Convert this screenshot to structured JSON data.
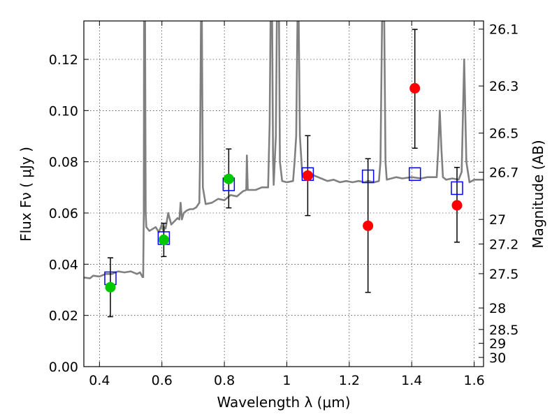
{
  "chart_data": {
    "type": "scatter",
    "xlabel": "Wavelength  λ (μm)",
    "ylabel_left": "Flux  Fν  ( μJy )",
    "ylabel_right": "Magnitude (AB)",
    "xlim": [
      0.35,
      1.63
    ],
    "ylim": [
      0.0,
      0.135
    ],
    "grid": true,
    "x_ticks": [
      0.4,
      0.6,
      0.8,
      1.0,
      1.2,
      1.4,
      1.6
    ],
    "x_tick_labels": [
      "0.4",
      "0.6",
      "0.8",
      "1",
      "1.2",
      "1.4",
      "1.6"
    ],
    "y_ticks": [
      0.0,
      0.02,
      0.04,
      0.06,
      0.08,
      0.1,
      0.12
    ],
    "y_tick_labels": [
      "0.00",
      "0.02",
      "0.04",
      "0.06",
      "0.08",
      "0.10",
      "0.12"
    ],
    "right_ticks": [
      {
        "label": "26.1",
        "flux": 0.1318
      },
      {
        "label": "26.3",
        "flux": 0.1096
      },
      {
        "label": "26.5",
        "flux": 0.0912
      },
      {
        "label": "26.7",
        "flux": 0.0759
      },
      {
        "label": "27",
        "flux": 0.0575
      },
      {
        "label": "27.2",
        "flux": 0.0479
      },
      {
        "label": "27.5",
        "flux": 0.0363
      },
      {
        "label": "28",
        "flux": 0.0229
      },
      {
        "label": "28.5",
        "flux": 0.0145
      },
      {
        "label": "29",
        "flux": 0.0091
      },
      {
        "label": "30",
        "flux": 0.0036
      }
    ],
    "series": [
      {
        "marker": "circle",
        "color": "#00c800",
        "points": [
          {
            "x": 0.435,
            "y": 0.031,
            "err_lo": 0.0195,
            "err_hi": 0.0425
          },
          {
            "x": 0.606,
            "y": 0.0495,
            "err_lo": 0.043,
            "err_hi": 0.056
          },
          {
            "x": 0.814,
            "y": 0.0733,
            "err_lo": 0.062,
            "err_hi": 0.085
          }
        ]
      },
      {
        "marker": "circle",
        "color": "#ff0000",
        "points": [
          {
            "x": 1.067,
            "y": 0.0746,
            "err_lo": 0.059,
            "err_hi": 0.0902
          },
          {
            "x": 1.26,
            "y": 0.055,
            "err_lo": 0.029,
            "err_hi": 0.0812
          },
          {
            "x": 1.41,
            "y": 0.1087,
            "err_lo": 0.0853,
            "err_hi": 0.1317
          },
          {
            "x": 1.545,
            "y": 0.063,
            "err_lo": 0.0486,
            "err_hi": 0.0778
          }
        ]
      },
      {
        "marker": "open-square",
        "color": "#0000ff",
        "points": [
          {
            "x": 0.435,
            "y": 0.0345
          },
          {
            "x": 0.606,
            "y": 0.0502
          },
          {
            "x": 0.814,
            "y": 0.0712
          },
          {
            "x": 1.067,
            "y": 0.0752
          },
          {
            "x": 1.26,
            "y": 0.0743
          },
          {
            "x": 1.41,
            "y": 0.0752
          },
          {
            "x": 1.545,
            "y": 0.0697
          }
        ]
      },
      {
        "type": "line",
        "color": "#808080",
        "points": [
          [
            0.35,
            0.0348
          ],
          [
            0.37,
            0.0345
          ],
          [
            0.38,
            0.0355
          ],
          [
            0.4,
            0.0352
          ],
          [
            0.42,
            0.0362
          ],
          [
            0.44,
            0.0362
          ],
          [
            0.46,
            0.0372
          ],
          [
            0.48,
            0.0368
          ],
          [
            0.5,
            0.0372
          ],
          [
            0.52,
            0.0362
          ],
          [
            0.53,
            0.0368
          ],
          [
            0.538,
            0.035
          ],
          [
            0.54,
            0.035
          ],
          [
            0.542,
            0.06
          ],
          [
            0.543,
            0.135
          ],
          [
            0.546,
            0.135
          ],
          [
            0.548,
            0.06
          ],
          [
            0.55,
            0.0545
          ],
          [
            0.56,
            0.053
          ],
          [
            0.58,
            0.0545
          ],
          [
            0.59,
            0.0525
          ],
          [
            0.6,
            0.0555
          ],
          [
            0.605,
            0.0528
          ],
          [
            0.61,
            0.0545
          ],
          [
            0.612,
            0.054
          ],
          [
            0.62,
            0.06
          ],
          [
            0.63,
            0.0555
          ],
          [
            0.65,
            0.058
          ],
          [
            0.656,
            0.0575
          ],
          [
            0.66,
            0.064
          ],
          [
            0.664,
            0.0575
          ],
          [
            0.67,
            0.06
          ],
          [
            0.68,
            0.061
          ],
          [
            0.69,
            0.0615
          ],
          [
            0.7,
            0.0615
          ],
          [
            0.71,
            0.0622
          ],
          [
            0.72,
            0.064
          ],
          [
            0.722,
            0.08
          ],
          [
            0.725,
            0.135
          ],
          [
            0.728,
            0.135
          ],
          [
            0.731,
            0.07
          ],
          [
            0.74,
            0.0635
          ],
          [
            0.76,
            0.064
          ],
          [
            0.78,
            0.0655
          ],
          [
            0.8,
            0.065
          ],
          [
            0.82,
            0.067
          ],
          [
            0.84,
            0.0665
          ],
          [
            0.86,
            0.0685
          ],
          [
            0.87,
            0.069
          ],
          [
            0.872,
            0.0825
          ],
          [
            0.875,
            0.069
          ],
          [
            0.9,
            0.069
          ],
          [
            0.92,
            0.07
          ],
          [
            0.94,
            0.07
          ],
          [
            0.945,
            0.095
          ],
          [
            0.948,
            0.135
          ],
          [
            0.953,
            0.135
          ],
          [
            0.956,
            0.08
          ],
          [
            0.958,
            0.071
          ],
          [
            0.965,
            0.09
          ],
          [
            0.968,
            0.135
          ],
          [
            0.972,
            0.135
          ],
          [
            0.975,
            0.135
          ],
          [
            0.978,
            0.08
          ],
          [
            0.985,
            0.0725
          ],
          [
            1.0,
            0.072
          ],
          [
            1.02,
            0.0725
          ],
          [
            1.025,
            0.08
          ],
          [
            1.03,
            0.09
          ],
          [
            1.034,
            0.135
          ],
          [
            1.038,
            0.135
          ],
          [
            1.042,
            0.09
          ],
          [
            1.05,
            0.074
          ],
          [
            1.07,
            0.0755
          ],
          [
            1.09,
            0.0745
          ],
          [
            1.11,
            0.0735
          ],
          [
            1.13,
            0.0725
          ],
          [
            1.15,
            0.073
          ],
          [
            1.17,
            0.072
          ],
          [
            1.19,
            0.0725
          ],
          [
            1.21,
            0.072
          ],
          [
            1.23,
            0.0725
          ],
          [
            1.25,
            0.072
          ],
          [
            1.26,
            0.0725
          ],
          [
            1.28,
            0.072
          ],
          [
            1.295,
            0.0725
          ],
          [
            1.3,
            0.08
          ],
          [
            1.305,
            0.135
          ],
          [
            1.312,
            0.135
          ],
          [
            1.316,
            0.08
          ],
          [
            1.32,
            0.073
          ],
          [
            1.35,
            0.074
          ],
          [
            1.37,
            0.0735
          ],
          [
            1.4,
            0.074
          ],
          [
            1.43,
            0.0735
          ],
          [
            1.45,
            0.074
          ],
          [
            1.47,
            0.074
          ],
          [
            1.48,
            0.074
          ],
          [
            1.485,
            0.085
          ],
          [
            1.49,
            0.1
          ],
          [
            1.495,
            0.085
          ],
          [
            1.5,
            0.074
          ],
          [
            1.51,
            0.073
          ],
          [
            1.53,
            0.0735
          ],
          [
            1.55,
            0.073
          ],
          [
            1.56,
            0.076
          ],
          [
            1.568,
            0.12
          ],
          [
            1.575,
            0.08
          ],
          [
            1.585,
            0.072
          ],
          [
            1.6,
            0.073
          ],
          [
            1.63,
            0.073
          ]
        ]
      }
    ]
  }
}
